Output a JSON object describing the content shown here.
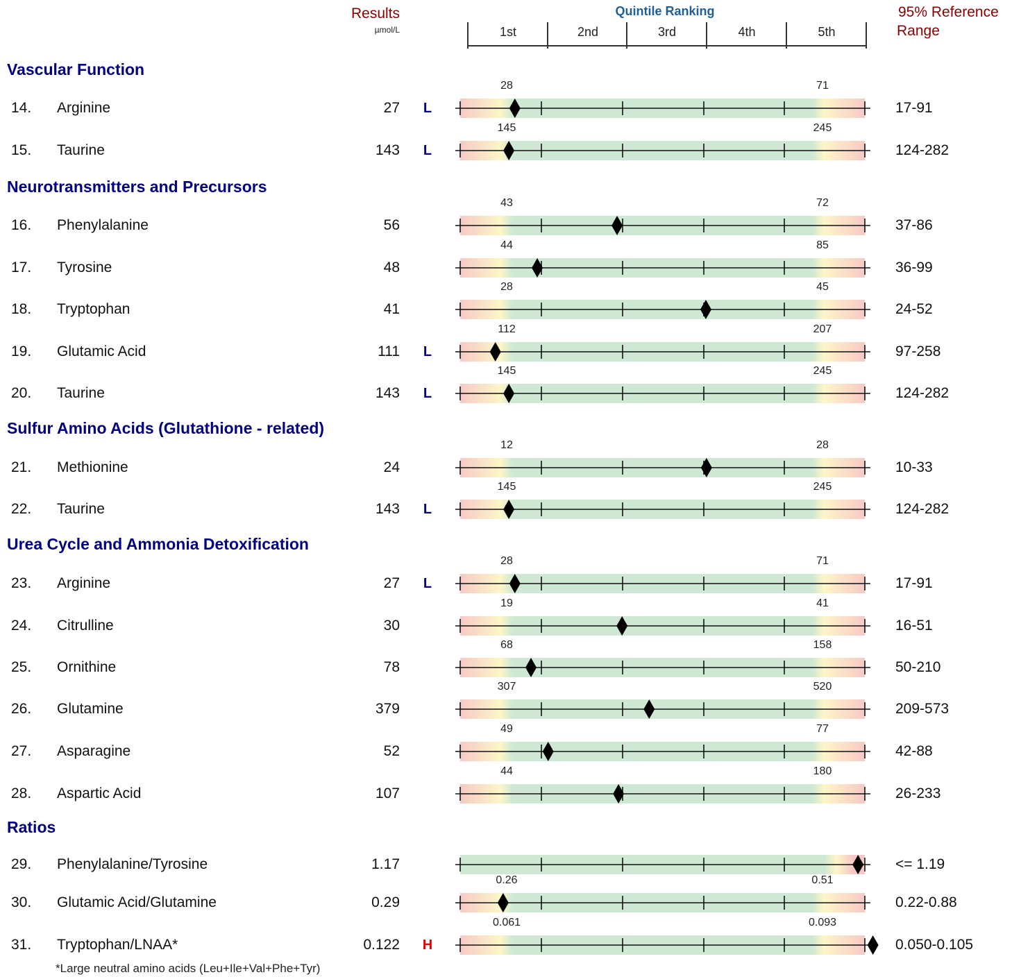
{
  "header": {
    "results": "Results",
    "unit": "µmol/L",
    "quintile_title": "Quintile Ranking",
    "quintiles": [
      "1st",
      "2nd",
      "3rd",
      "4th",
      "5th"
    ],
    "reference_line1": "95% Reference",
    "reference_line2": "Range"
  },
  "colors": {
    "section": "#000080",
    "header_red": "#8b0000",
    "quintile_blue": "#1f5f95",
    "flag_low": "#000080",
    "flag_high": "#e60000",
    "band_green": "#cfe8d3",
    "band_red": "#f6c9c6",
    "band_yellow": "#fdf6c8"
  },
  "sections": [
    {
      "title": "Vascular Function",
      "rows": [
        {
          "num": "14.",
          "name": "Arginine",
          "result": "27",
          "flag": "L",
          "low": "28",
          "high": "71",
          "ref": "17-91",
          "value": 27,
          "ref_min": 17,
          "ref_max": 91
        },
        {
          "num": "15.",
          "name": "Taurine",
          "result": "143",
          "flag": "L",
          "low": "145",
          "high": "245",
          "ref": "124-282",
          "value": 143,
          "ref_min": 124,
          "ref_max": 282
        }
      ]
    },
    {
      "title": "Neurotransmitters and Precursors",
      "rows": [
        {
          "num": "16.",
          "name": "Phenylalanine",
          "result": "56",
          "flag": "",
          "low": "43",
          "high": "72",
          "ref": "37-86",
          "value": 56,
          "ref_min": 37,
          "ref_max": 86
        },
        {
          "num": "17.",
          "name": "Tyrosine",
          "result": "48",
          "flag": "",
          "low": "44",
          "high": "85",
          "ref": "36-99",
          "value": 48,
          "ref_min": 36,
          "ref_max": 99
        },
        {
          "num": "18.",
          "name": "Tryptophan",
          "result": "41",
          "flag": "",
          "low": "28",
          "high": "45",
          "ref": "24-52",
          "value": 41,
          "ref_min": 24,
          "ref_max": 52
        },
        {
          "num": "19.",
          "name": "Glutamic Acid",
          "result": "111",
          "flag": "L",
          "low": "112",
          "high": "207",
          "ref": "97-258",
          "value": 111,
          "ref_min": 97,
          "ref_max": 258
        },
        {
          "num": "20.",
          "name": "Taurine",
          "result": "143",
          "flag": "L",
          "low": "145",
          "high": "245",
          "ref": "124-282",
          "value": 143,
          "ref_min": 124,
          "ref_max": 282
        }
      ]
    },
    {
      "title": "Sulfur Amino Acids (Glutathione - related)",
      "rows": [
        {
          "num": "21.",
          "name": "Methionine",
          "result": "24",
          "flag": "",
          "low": "12",
          "high": "28",
          "ref": "10-33",
          "value": 24,
          "ref_min": 10,
          "ref_max": 33
        },
        {
          "num": "22.",
          "name": "Taurine",
          "result": "143",
          "flag": "L",
          "low": "145",
          "high": "245",
          "ref": "124-282",
          "value": 143,
          "ref_min": 124,
          "ref_max": 282
        }
      ]
    },
    {
      "title": "Urea Cycle and Ammonia Detoxification",
      "rows": [
        {
          "num": "23.",
          "name": "Arginine",
          "result": "27",
          "flag": "L",
          "low": "28",
          "high": "71",
          "ref": "17-91",
          "value": 27,
          "ref_min": 17,
          "ref_max": 91
        },
        {
          "num": "24.",
          "name": "Citrulline",
          "result": "30",
          "flag": "",
          "low": "19",
          "high": "41",
          "ref": "16-51",
          "value": 30,
          "ref_min": 16,
          "ref_max": 51
        },
        {
          "num": "25.",
          "name": "Ornithine",
          "result": "78",
          "flag": "",
          "low": "68",
          "high": "158",
          "ref": "50-210",
          "value": 78,
          "ref_min": 50,
          "ref_max": 210
        },
        {
          "num": "26.",
          "name": "Glutamine",
          "result": "379",
          "flag": "",
          "low": "307",
          "high": "520",
          "ref": "209-573",
          "value": 379,
          "ref_min": 209,
          "ref_max": 573
        },
        {
          "num": "27.",
          "name": "Asparagine",
          "result": "52",
          "flag": "",
          "low": "49",
          "high": "77",
          "ref": "42-88",
          "value": 52,
          "ref_min": 42,
          "ref_max": 88
        },
        {
          "num": "28.",
          "name": "Aspartic Acid",
          "result": "107",
          "flag": "",
          "low": "44",
          "high": "180",
          "ref": "26-233",
          "value": 107,
          "ref_min": 26,
          "ref_max": 233
        }
      ]
    },
    {
      "title": "Ratios",
      "rows": [
        {
          "num": "29.",
          "name": "Phenylalanine/Tyrosine",
          "result": "1.17",
          "flag": "",
          "low": "",
          "high": "",
          "ref": "<= 1.19",
          "value": 1.17,
          "ref_min": 0,
          "ref_max": 1.19,
          "upper_only": true
        },
        {
          "num": "30.",
          "name": "Glutamic Acid/Glutamine",
          "result": "0.29",
          "flag": "",
          "low": "0.26",
          "high": "0.51",
          "ref": "0.22-0.88",
          "value": 0.29,
          "ref_min": 0.22,
          "ref_max": 0.88
        },
        {
          "num": "31.",
          "name": "Tryptophan/LNAA*",
          "result": "0.122",
          "flag": "H",
          "low": "0.061",
          "high": "0.093",
          "ref": "0.050-0.105",
          "value": 0.122,
          "ref_min": 0.05,
          "ref_max": 0.105
        }
      ]
    }
  ],
  "footnote": "*Large neutral amino acids (Leu+Ile+Val+Phe+Tyr)"
}
